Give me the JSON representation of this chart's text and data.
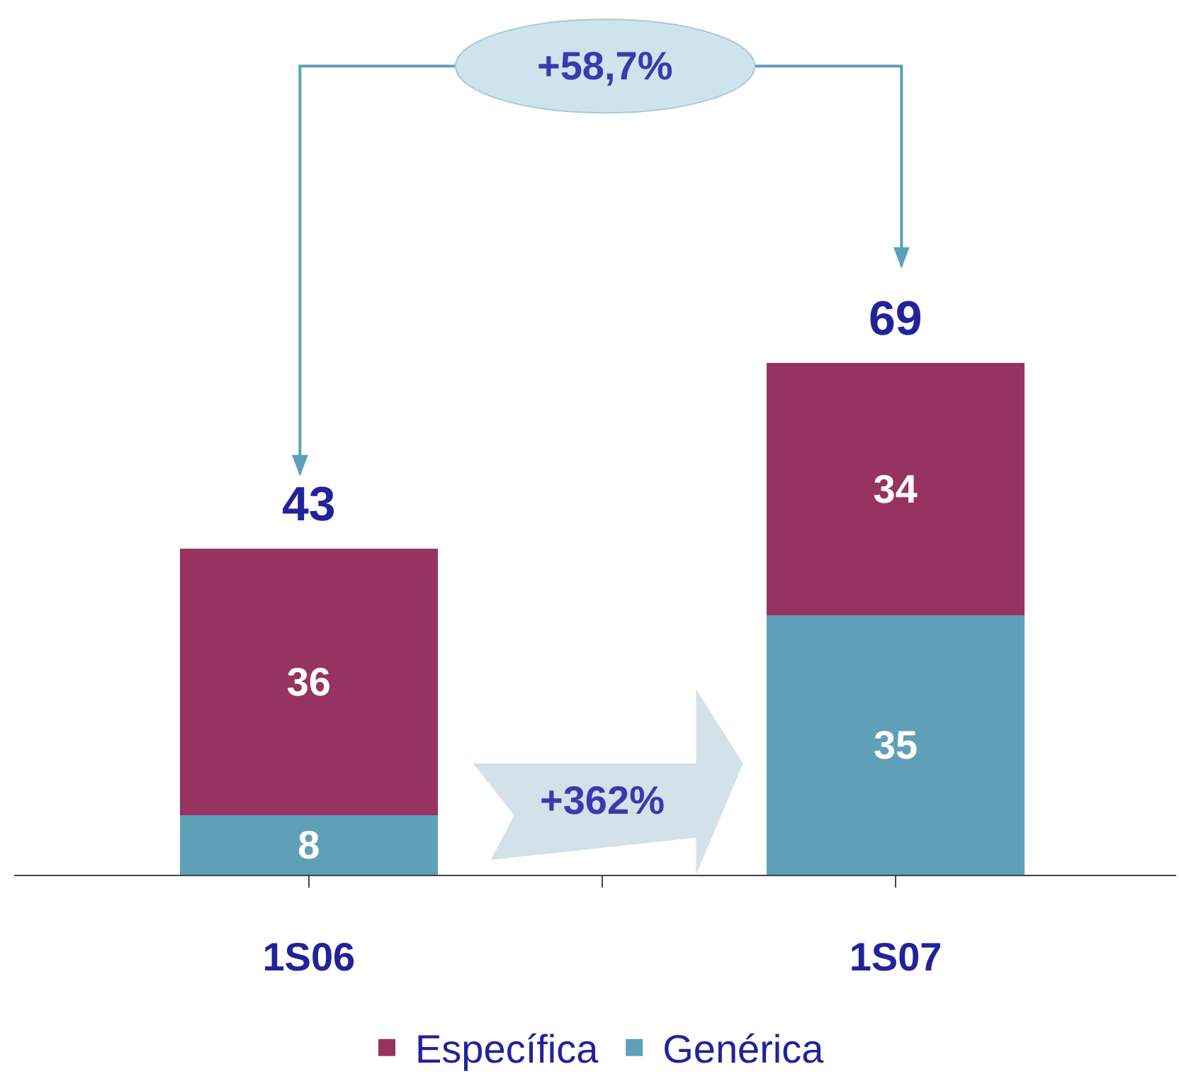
{
  "chart_data": {
    "type": "bar",
    "stacked": true,
    "categories": [
      "1S06",
      "1S07"
    ],
    "series": [
      {
        "name": "Genérica",
        "color": "#5f9fb8",
        "values": [
          8,
          35
        ]
      },
      {
        "name": "Específica",
        "color": "#973361",
        "values": [
          36,
          34
        ]
      }
    ],
    "data_labels": true,
    "totals": [
      "43",
      "69"
    ],
    "annotations": [
      "+58,7%",
      "+362%"
    ],
    "legend": "bottom",
    "grid": false
  }
}
